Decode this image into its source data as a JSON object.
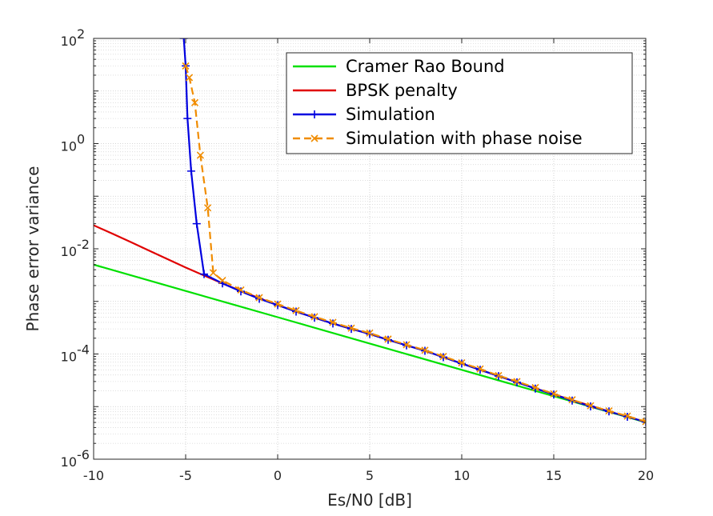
{
  "chart_data": {
    "type": "line",
    "xlabel": "Es/N0 [dB]",
    "ylabel": "Phase error variance",
    "xlim": [
      -10,
      20
    ],
    "ylim": [
      1e-06,
      100
    ],
    "yscale": "log",
    "grid": true,
    "legend_position": "top-right",
    "x_ticks": [
      "-10",
      "-5",
      "0",
      "5",
      "10",
      "15",
      "20"
    ],
    "y_ticks": [
      {
        "base": "10",
        "exp": "2"
      },
      {
        "base": "10",
        "exp": "0"
      },
      {
        "base": "10",
        "exp": "-2"
      },
      {
        "base": "10",
        "exp": "-4"
      },
      {
        "base": "10",
        "exp": "-6"
      }
    ],
    "series": [
      {
        "name": "Cramer Rao Bound",
        "color": "#00e000",
        "style": "solid",
        "marker": "none",
        "x": [
          -10,
          -5,
          0,
          5,
          10,
          15,
          20
        ],
        "y": [
          0.005,
          0.00158,
          0.0005,
          0.000158,
          5e-05,
          1.58e-05,
          5e-06
        ]
      },
      {
        "name": "BPSK penalty",
        "color": "#e00000",
        "style": "solid",
        "marker": "none",
        "x": [
          -10,
          -9,
          -8,
          -7,
          -6,
          -5,
          -4,
          -3,
          -2,
          -1,
          0,
          1,
          2,
          3,
          4,
          5,
          6,
          7,
          8,
          10,
          12,
          15,
          18,
          20
        ],
        "y": [
          0.028,
          0.0195,
          0.0135,
          0.0093,
          0.0064,
          0.0044,
          0.0031,
          0.0022,
          0.00158,
          0.00115,
          0.00085,
          0.00064,
          0.00049,
          0.00038,
          0.0003,
          0.00024,
          0.000186,
          0.000146,
          0.000115,
          6.6e-05,
          3.8e-05,
          1.7e-05,
          8.1e-06,
          5.1e-06
        ]
      },
      {
        "name": "Simulation",
        "color": "#0000e0",
        "style": "solid",
        "marker": "plus",
        "x": [
          -5.1,
          -5,
          -4.9,
          -4.7,
          -4.4,
          -4,
          -3,
          -2,
          -1,
          0,
          1,
          2,
          3,
          4,
          5,
          6,
          7,
          8,
          9,
          10,
          11,
          12,
          13,
          14,
          15,
          16,
          17,
          18,
          19,
          20
        ],
        "y": [
          100,
          30,
          3,
          0.3,
          0.03,
          0.0033,
          0.0022,
          0.00155,
          0.00112,
          0.00085,
          0.00064,
          0.00049,
          0.00038,
          0.0003,
          0.00024,
          0.000186,
          0.000146,
          0.000115,
          8.7e-05,
          6.6e-05,
          5e-05,
          3.8e-05,
          2.9e-05,
          2.2e-05,
          1.7e-05,
          1.3e-05,
          1.01e-05,
          8.1e-06,
          6.4e-06,
          5.1e-06
        ]
      },
      {
        "name": "Simulation with phase noise",
        "color": "#f08c00",
        "style": "dashed",
        "marker": "cross",
        "x": [
          -5,
          -4.8,
          -4.5,
          -4.2,
          -3.8,
          -3.5,
          -3,
          -2,
          -1,
          0,
          1,
          2,
          3,
          4,
          5,
          6,
          7,
          8,
          9,
          10,
          11,
          12,
          13,
          14,
          15,
          16,
          17,
          18,
          19,
          20
        ],
        "y": [
          30,
          18,
          6,
          0.6,
          0.06,
          0.0035,
          0.0025,
          0.00165,
          0.00118,
          0.00089,
          0.00067,
          0.00051,
          0.0004,
          0.00031,
          0.00025,
          0.000192,
          0.00015,
          0.000118,
          9e-05,
          6.8e-05,
          5.2e-05,
          3.9e-05,
          3e-05,
          2.3e-05,
          1.75e-05,
          1.35e-05,
          1.04e-05,
          8.3e-06,
          6.6e-06,
          5.2e-06
        ]
      }
    ]
  }
}
